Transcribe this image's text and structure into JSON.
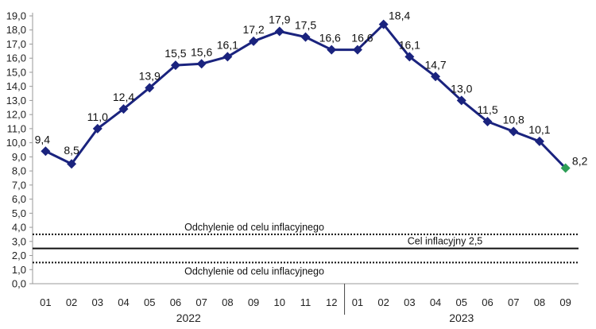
{
  "chart_data": {
    "type": "line",
    "x_labels": [
      "01",
      "02",
      "03",
      "04",
      "05",
      "06",
      "07",
      "08",
      "09",
      "10",
      "11",
      "12",
      "01",
      "02",
      "03",
      "04",
      "05",
      "06",
      "07",
      "08",
      "09"
    ],
    "years": [
      {
        "label": "2022",
        "start": 0,
        "end": 11
      },
      {
        "label": "2023",
        "start": 12,
        "end": 20
      }
    ],
    "series": [
      {
        "values": [
          9.4,
          8.5,
          11.0,
          12.4,
          13.9,
          15.5,
          15.6,
          16.1,
          17.2,
          17.9,
          17.5,
          16.6,
          16.6,
          18.4,
          16.1,
          14.7,
          13.0,
          11.5,
          10.8,
          10.1,
          8.2
        ],
        "data_labels": [
          "9,4",
          "8,5",
          "11,0",
          "12,4",
          "13,9",
          "15,5",
          "15,6",
          "16,1",
          "17,2",
          "17,9",
          "17,5",
          "16,6",
          "16,6",
          "18,4",
          "16,1",
          "14,7",
          "13,0",
          "11,5",
          "10,8",
          "10,1",
          "8,2"
        ],
        "color": "#1a237e",
        "last_point_color": "#2e9e57"
      }
    ],
    "reference_lines": [
      {
        "value": 3.5,
        "style": "dotted",
        "label": "Odchylenie od celu inflacyjnego",
        "label_position": "above"
      },
      {
        "value": 2.5,
        "style": "solid",
        "label": "Cel inflacyjny 2,5",
        "label_position": "above"
      },
      {
        "value": 1.5,
        "style": "dotted",
        "label": "Odchylenie od celu inflacyjnego",
        "label_position": "below"
      }
    ],
    "y_ticks": [
      "0,0",
      "1,0",
      "2,0",
      "3,0",
      "4,0",
      "5,0",
      "6,0",
      "7,0",
      "8,0",
      "9,0",
      "10,0",
      "11,0",
      "12,0",
      "13,0",
      "14,0",
      "15,0",
      "16,0",
      "17,0",
      "18,0",
      "19,0"
    ],
    "ylim": [
      0,
      19
    ],
    "grid": false,
    "legend": "none"
  }
}
